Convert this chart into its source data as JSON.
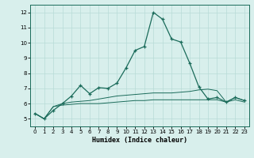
{
  "xlabel": "Humidex (Indice chaleur)",
  "xlim": [
    -0.5,
    23.5
  ],
  "ylim": [
    4.5,
    12.5
  ],
  "yticks": [
    5,
    6,
    7,
    8,
    9,
    10,
    11,
    12
  ],
  "xticks": [
    0,
    1,
    2,
    3,
    4,
    5,
    6,
    7,
    8,
    9,
    10,
    11,
    12,
    13,
    14,
    15,
    16,
    17,
    18,
    19,
    20,
    21,
    22,
    23
  ],
  "background_color": "#d8efec",
  "grid_color": "#b8dbd7",
  "line_color": "#1a6b5a",
  "line1_x": [
    0,
    1,
    2,
    3,
    4,
    5,
    6,
    7,
    8,
    9,
    10,
    11,
    12,
    13,
    14,
    15,
    16,
    17,
    18,
    19,
    20,
    21,
    22,
    23
  ],
  "line1_y": [
    5.35,
    5.0,
    5.55,
    6.0,
    6.5,
    7.2,
    6.65,
    7.05,
    7.0,
    7.35,
    8.35,
    9.5,
    9.75,
    12.0,
    11.55,
    10.25,
    10.05,
    8.65,
    7.1,
    6.3,
    6.4,
    6.1,
    6.4,
    6.2
  ],
  "line2_x": [
    0,
    1,
    2,
    3,
    4,
    5,
    6,
    7,
    8,
    9,
    10,
    11,
    12,
    13,
    14,
    15,
    16,
    17,
    18,
    19,
    20,
    21,
    22,
    23
  ],
  "line2_y": [
    5.35,
    5.0,
    5.8,
    6.0,
    6.1,
    6.15,
    6.2,
    6.3,
    6.4,
    6.5,
    6.55,
    6.6,
    6.65,
    6.7,
    6.7,
    6.7,
    6.75,
    6.8,
    6.9,
    6.95,
    6.85,
    6.1,
    6.4,
    6.2
  ],
  "line3_x": [
    0,
    1,
    2,
    3,
    4,
    5,
    6,
    7,
    8,
    9,
    10,
    11,
    12,
    13,
    14,
    15,
    16,
    17,
    18,
    19,
    20,
    21,
    22,
    23
  ],
  "line3_y": [
    5.35,
    5.0,
    5.8,
    5.9,
    5.95,
    6.0,
    6.0,
    6.0,
    6.05,
    6.1,
    6.15,
    6.2,
    6.2,
    6.25,
    6.25,
    6.25,
    6.25,
    6.25,
    6.25,
    6.25,
    6.25,
    6.1,
    6.25,
    6.1
  ]
}
